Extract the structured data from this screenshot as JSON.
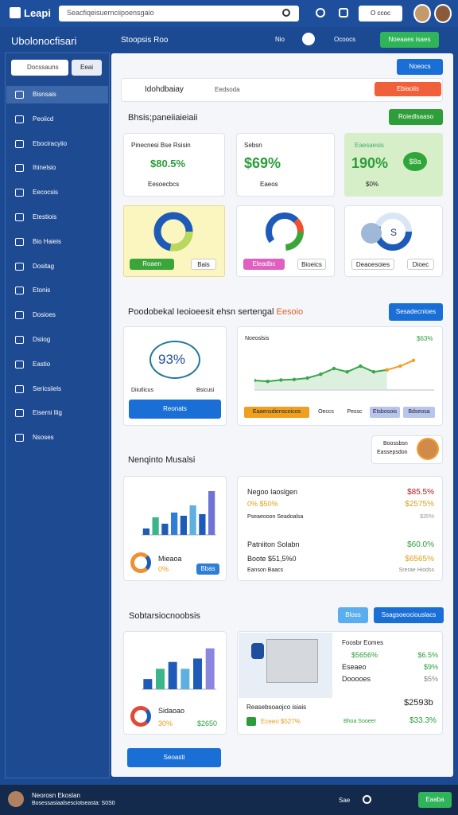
{
  "header": {
    "logo": "Leapi",
    "search": "Seacfiqeisuernciipoensgaio",
    "button": "O ccoc",
    "title": "Ubolonocfisari",
    "subtitle": "Stoopsis Roo",
    "nav": "Nio",
    "nav2": "Ocoocs",
    "action": "Noeaaes isaes"
  },
  "sidebar": {
    "search": "Docssauns",
    "search_button": "Eeai",
    "items": [
      "Bisnsais",
      "Peoiicd",
      "Ebociracyiio",
      "Ihinelsio",
      "Eecocsis",
      "Etestiois",
      "Bio Haieis",
      "Dositag",
      "Etonis",
      "Dosioes",
      "Dsiiog",
      "Eastio",
      "Sericsiiels",
      "Eiserni Ilig",
      "Nsoses"
    ]
  },
  "toolbar": {
    "top_button": "Noeocs",
    "title": "Idohdbaiay",
    "search": "Eedsoda",
    "button": "Ebiaoiis"
  },
  "overview": {
    "title": "Bhsis;paneiiaieiaii",
    "button": "Roiedlsaaso",
    "cards": [
      {
        "label": "Pinecnesi Bse Rsisin",
        "value": "$80.5%",
        "sub": "Eesoecbcs"
      },
      {
        "label": "Sebsn",
        "value": "$69%",
        "sub": "Eaeos"
      },
      {
        "label": "Eaesaesis",
        "value": "190%",
        "sub": "$0%",
        "badge": "$8a"
      }
    ],
    "donuts": [
      {
        "button": "Roaen",
        "button2": "Bais"
      },
      {
        "button": "Eleadbc",
        "button2": "Bioeics"
      },
      {
        "button": "Deaoesoies",
        "button2": "Dioec",
        "center": "S"
      }
    ]
  },
  "performance": {
    "title": "Poodobekal Ieoioeesit ehsn sertengal",
    "highlight": "Eesoio",
    "button": "Sesadecnioes",
    "gauge": "93%",
    "gauge_left": "Diiutlicus",
    "gauge_right": "Bsicusi",
    "gauge_button": "Reonats",
    "chart": {
      "type": "line",
      "title": "Noeoslsis",
      "value": "$63%",
      "x": [
        0,
        1,
        2,
        3,
        4,
        5,
        6,
        7,
        8,
        9,
        10,
        11,
        12
      ],
      "xlim": [
        0,
        12
      ],
      "ylim": [
        0,
        100
      ],
      "series": [
        {
          "color": "#3aa64a",
          "values": [
            20,
            18,
            21,
            22,
            25,
            33,
            45,
            38,
            50,
            38,
            42,
            null,
            null
          ]
        },
        {
          "color": "#f0a020",
          "values": [
            null,
            null,
            null,
            null,
            null,
            null,
            null,
            null,
            null,
            null,
            42,
            50,
            62
          ]
        }
      ],
      "legend": [
        "Eaaensdienscoicos",
        "Oeccs",
        "Pessc",
        "Etsbosois",
        "Bdseosa"
      ]
    }
  },
  "market": {
    "title": "Nenqinto Musalsi",
    "profile": "Boossbsn",
    "profile_sub": "Eassepsdon",
    "chart": {
      "type": "bar",
      "values": [
        8,
        22,
        14,
        28,
        24,
        37,
        26,
        55
      ],
      "colors": [
        "#1e5bb8",
        "#3bb58a",
        "#1e5bb8",
        "#2e7dd6",
        "#1e5bb8",
        "#5fb0e0",
        "#1e5bb8",
        "#6f73d6"
      ],
      "ylim": [
        0,
        60
      ]
    },
    "chart_label": "Mieaoa",
    "chart_value": "0%",
    "chart_button": "Bbas",
    "rows": [
      [
        "Negoo Iaoslgen",
        "$85.5%"
      ],
      [
        "0% $50%",
        "$2575%"
      ],
      [
        "Pseaeooon Seadoalsa",
        "$35%"
      ],
      [
        "Patniiton Solabn",
        "$60.0%"
      ],
      [
        "Boote $51,5%0",
        "$6565%"
      ],
      [
        "Eanson Baacs",
        "Srerae Hiodss"
      ]
    ]
  },
  "summary": {
    "title": "Sobtarsiocnoobsis",
    "button": "Bloss",
    "button2": "Ssagsoeociouslacs",
    "chart": {
      "type": "bar",
      "values": [
        15,
        30,
        40,
        30,
        45,
        60
      ],
      "colors": [
        "#1e5bb8",
        "#3bb58a",
        "#1e5bb8",
        "#5fb0e0",
        "#1e5bb8",
        "#8c86e0"
      ],
      "ylim": [
        0,
        70
      ]
    },
    "chart_label": "Sidaoao",
    "chart_value": "30%",
    "chart_total": "$2650",
    "rows": [
      [
        "Foosbr Eomes",
        ""
      ],
      [
        "$5656%",
        "$6.5%"
      ],
      [
        "Eseaeo",
        "$9%"
      ],
      [
        "Dooooes",
        "$5%"
      ]
    ],
    "total": "$2593b",
    "caption": "Reasebsoaojco isiais",
    "foot_left": "Eceeo $527%",
    "foot_mid": "Bhoa Sooeer",
    "foot_right": "$33.3%",
    "bottom_button": "Seoasti"
  },
  "footer": {
    "name": "Neorosn Ekoslan",
    "sub": "Bosessasiaalsesciotseasta: S0S0",
    "link": "Sae",
    "button": "Eaaba"
  }
}
